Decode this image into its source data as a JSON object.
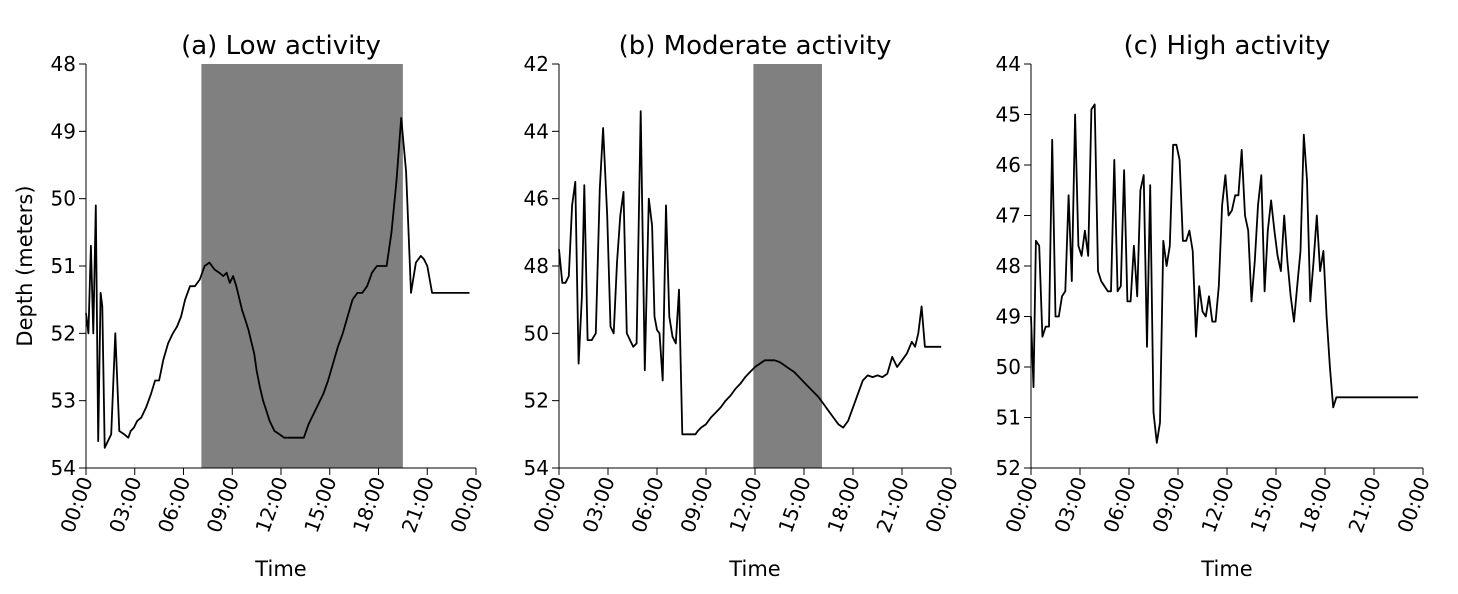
{
  "figure": {
    "ylabel": "Depth (meters)",
    "shade_color": "#808080",
    "line_color": "#000000"
  },
  "chart_data": [
    {
      "type": "line",
      "title": "(a) Low activity",
      "xlabel": "Time",
      "ylabel": "Depth (meters)",
      "y_inverted": true,
      "ylim": [
        48,
        54
      ],
      "yticks": [
        48,
        49,
        50,
        51,
        52,
        53,
        54
      ],
      "xlim": [
        0,
        24
      ],
      "xticks": [
        "00:00",
        "03:00",
        "06:00",
        "09:00",
        "12:00",
        "15:00",
        "18:00",
        "21:00",
        "00:00"
      ],
      "grid": false,
      "shaded": {
        "start_hour": 7.1,
        "end_hour": 19.5
      },
      "series": [
        {
          "x": [
            0,
            0.15,
            0.3,
            0.45,
            0.6,
            0.75,
            0.9,
            1.0,
            1.15,
            1.35,
            1.55,
            1.8,
            2.05,
            2.35,
            2.6,
            2.75,
            2.95,
            3.15,
            3.4,
            3.7,
            4.0,
            4.25,
            4.5,
            4.75,
            5.05,
            5.35,
            5.6,
            5.85,
            6.1,
            6.4,
            6.7,
            7.0,
            7.3,
            7.6,
            7.9,
            8.2,
            8.45,
            8.65,
            8.85,
            9.05,
            9.25,
            9.45,
            9.6,
            9.8,
            10.0,
            10.15,
            10.35,
            10.5,
            10.7,
            10.9,
            11.1,
            11.3,
            11.6,
            11.9,
            12.2,
            12.5,
            12.8,
            13.1,
            13.4,
            13.7,
            14.0,
            14.3,
            14.6,
            14.9,
            15.2,
            15.5,
            15.8,
            16.1,
            16.4,
            16.7,
            17.0,
            17.3,
            17.6,
            17.9,
            18.2,
            18.5,
            18.8,
            19.1,
            19.4,
            19.7,
            20.0,
            20.3,
            20.6,
            20.8,
            21.0,
            21.3,
            21.6,
            21.9,
            22.2,
            22.4,
            22.6,
            22.8,
            23.0,
            23.2,
            23.4,
            23.6
          ],
          "y": [
            51.7,
            52.0,
            50.7,
            52.0,
            50.1,
            53.6,
            51.4,
            51.6,
            53.7,
            53.6,
            53.5,
            52.0,
            53.45,
            53.5,
            53.55,
            53.45,
            53.4,
            53.3,
            53.25,
            53.1,
            52.9,
            52.7,
            52.7,
            52.4,
            52.15,
            52.0,
            51.9,
            51.75,
            51.5,
            51.3,
            51.3,
            51.2,
            51.0,
            50.95,
            51.05,
            51.1,
            51.15,
            51.1,
            51.25,
            51.15,
            51.3,
            51.5,
            51.65,
            51.8,
            51.95,
            52.1,
            52.3,
            52.55,
            52.8,
            53.0,
            53.15,
            53.3,
            53.45,
            53.5,
            53.55,
            53.55,
            53.55,
            53.55,
            53.55,
            53.35,
            53.2,
            53.05,
            52.9,
            52.7,
            52.45,
            52.2,
            52.0,
            51.75,
            51.5,
            51.4,
            51.4,
            51.3,
            51.1,
            51.0,
            51.0,
            51.0,
            50.5,
            49.75,
            48.8,
            49.6,
            51.4,
            50.95,
            50.85,
            50.9,
            51.0,
            51.4,
            51.4,
            51.4,
            51.4,
            51.4,
            51.4,
            51.4,
            51.4,
            51.4,
            51.4,
            51.4
          ]
        }
      ]
    },
    {
      "type": "line",
      "title": "(b) Moderate activity",
      "xlabel": "Time",
      "ylabel": "",
      "y_inverted": true,
      "ylim": [
        42,
        54
      ],
      "yticks": [
        42,
        44,
        46,
        48,
        50,
        52,
        54
      ],
      "xlim": [
        0,
        24
      ],
      "xticks": [
        "00:00",
        "03:00",
        "06:00",
        "09:00",
        "12:00",
        "15:00",
        "18:00",
        "21:00",
        "00:00"
      ],
      "grid": false,
      "shaded": {
        "start_hour": 11.9,
        "end_hour": 16.1
      },
      "series": [
        {
          "x": [
            0,
            0.2,
            0.4,
            0.6,
            0.8,
            1.0,
            1.2,
            1.4,
            1.55,
            1.75,
            2.0,
            2.25,
            2.5,
            2.7,
            2.95,
            3.15,
            3.35,
            3.55,
            3.75,
            3.95,
            4.15,
            4.35,
            4.55,
            4.75,
            5.0,
            5.25,
            5.5,
            5.7,
            5.85,
            6.0,
            6.15,
            6.35,
            6.55,
            6.75,
            6.95,
            7.15,
            7.35,
            7.55,
            7.75,
            7.95,
            8.15,
            8.35,
            8.5,
            8.7,
            9.0,
            9.3,
            9.6,
            9.9,
            10.2,
            10.5,
            10.8,
            11.1,
            11.4,
            11.7,
            12.0,
            12.3,
            12.6,
            12.9,
            13.2,
            13.5,
            13.8,
            14.1,
            14.4,
            14.7,
            15.0,
            15.3,
            15.6,
            15.9,
            16.2,
            16.5,
            16.8,
            17.1,
            17.4,
            17.7,
            18.0,
            18.3,
            18.6,
            18.9,
            19.2,
            19.5,
            19.8,
            20.1,
            20.4,
            20.7,
            21.0,
            21.3,
            21.6,
            21.8,
            22.0,
            22.2,
            22.4,
            22.6,
            22.8,
            23.0,
            23.2,
            23.4
          ],
          "y": [
            47.5,
            48.5,
            48.5,
            48.3,
            46.2,
            45.5,
            50.9,
            48.9,
            45.6,
            50.2,
            50.2,
            50.0,
            45.7,
            43.9,
            46.5,
            49.8,
            50.0,
            47.9,
            46.5,
            45.8,
            50.0,
            50.2,
            50.4,
            50.3,
            43.4,
            51.1,
            46.0,
            46.8,
            49.5,
            49.9,
            50.0,
            51.4,
            46.2,
            49.5,
            50.1,
            50.3,
            48.7,
            53.0,
            53.0,
            53.0,
            53.0,
            53.0,
            52.9,
            52.8,
            52.7,
            52.5,
            52.35,
            52.2,
            52.0,
            51.85,
            51.65,
            51.5,
            51.3,
            51.15,
            51.0,
            50.9,
            50.8,
            50.8,
            50.8,
            50.85,
            50.95,
            51.05,
            51.15,
            51.3,
            51.45,
            51.6,
            51.75,
            51.9,
            52.1,
            52.3,
            52.5,
            52.7,
            52.8,
            52.6,
            52.2,
            51.8,
            51.4,
            51.25,
            51.3,
            51.25,
            51.3,
            51.2,
            50.7,
            51.0,
            50.8,
            50.6,
            50.25,
            50.4,
            50.0,
            49.2,
            50.4,
            50.4,
            50.4,
            50.4,
            50.4,
            50.4
          ]
        }
      ]
    },
    {
      "type": "line",
      "title": "(c) High activity",
      "xlabel": "Time",
      "ylabel": "",
      "y_inverted": true,
      "ylim": [
        44,
        52
      ],
      "yticks": [
        44,
        45,
        46,
        47,
        48,
        49,
        50,
        51,
        52
      ],
      "xlim": [
        0,
        24
      ],
      "xticks": [
        "00:00",
        "03:00",
        "06:00",
        "09:00",
        "12:00",
        "15:00",
        "18:00",
        "21:00",
        "00:00"
      ],
      "grid": false,
      "shaded": null,
      "series": [
        {
          "x": [
            0,
            0.15,
            0.3,
            0.5,
            0.7,
            0.9,
            1.1,
            1.3,
            1.5,
            1.7,
            1.9,
            2.1,
            2.3,
            2.5,
            2.7,
            2.9,
            3.1,
            3.3,
            3.5,
            3.7,
            3.9,
            4.1,
            4.3,
            4.5,
            4.7,
            4.9,
            5.1,
            5.3,
            5.5,
            5.7,
            5.9,
            6.1,
            6.3,
            6.5,
            6.7,
            6.9,
            7.1,
            7.3,
            7.5,
            7.7,
            7.9,
            8.1,
            8.3,
            8.5,
            8.7,
            8.9,
            9.1,
            9.3,
            9.5,
            9.7,
            9.9,
            10.1,
            10.3,
            10.5,
            10.7,
            10.9,
            11.1,
            11.3,
            11.5,
            11.7,
            11.9,
            12.1,
            12.3,
            12.5,
            12.7,
            12.9,
            13.1,
            13.3,
            13.5,
            13.7,
            13.9,
            14.1,
            14.3,
            14.5,
            14.7,
            14.9,
            15.1,
            15.3,
            15.5,
            15.7,
            15.9,
            16.1,
            16.3,
            16.5,
            16.7,
            16.9,
            17.1,
            17.3,
            17.5,
            17.7,
            17.9,
            18.1,
            18.3,
            18.5,
            18.7,
            18.9,
            19.1,
            19.3,
            19.5,
            19.7,
            19.9,
            20.1,
            20.3,
            20.5,
            20.7,
            20.9,
            21.1,
            21.3,
            21.5,
            21.7,
            21.9,
            22.1,
            22.3,
            22.5,
            22.7,
            22.9,
            23.1,
            23.3,
            23.5,
            23.7
          ],
          "y": [
            49.0,
            50.4,
            47.5,
            47.6,
            49.4,
            49.2,
            49.2,
            45.5,
            49.0,
            49.0,
            48.6,
            48.5,
            46.6,
            48.3,
            45.0,
            47.6,
            47.8,
            47.3,
            47.8,
            44.9,
            44.8,
            48.1,
            48.3,
            48.4,
            48.5,
            48.5,
            45.9,
            48.5,
            48.4,
            46.1,
            48.7,
            48.7,
            47.6,
            48.6,
            46.5,
            46.2,
            49.6,
            46.4,
            50.9,
            51.5,
            51.1,
            47.5,
            48.0,
            47.6,
            45.6,
            45.6,
            45.9,
            47.5,
            47.5,
            47.3,
            47.7,
            49.4,
            48.4,
            48.9,
            49.0,
            48.6,
            49.1,
            49.1,
            48.4,
            46.8,
            46.2,
            47.0,
            46.9,
            46.6,
            46.6,
            45.7,
            47.0,
            47.3,
            48.7,
            47.9,
            46.8,
            46.2,
            48.5,
            47.3,
            46.7,
            47.3,
            47.8,
            48.1,
            47.0,
            47.9,
            48.6,
            49.1,
            48.4,
            47.7,
            45.4,
            46.3,
            48.7,
            47.9,
            47.0,
            48.1,
            47.7,
            49.0,
            50.0,
            50.8,
            50.6,
            50.6,
            50.6,
            50.6,
            50.6,
            50.6,
            50.6,
            50.6,
            50.6,
            50.6,
            50.6,
            50.6,
            50.6,
            50.6,
            50.6,
            50.6,
            50.6,
            50.6,
            50.6,
            50.6,
            50.6,
            50.6,
            50.6,
            50.6,
            50.6,
            50.6
          ]
        }
      ]
    }
  ]
}
